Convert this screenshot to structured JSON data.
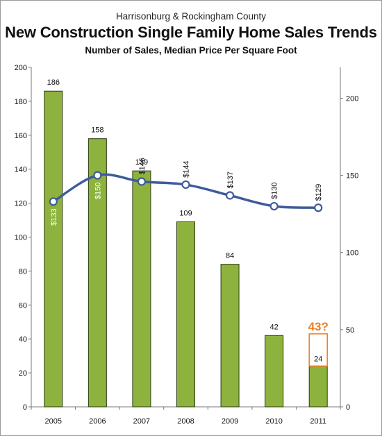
{
  "title_top": "Harrisonburg & Rockingham County",
  "title_main": "New Construction Single Family Home Sales Trends",
  "subtitle": "Number of Sales, Median Price Per Square Foot",
  "colors": {
    "bar": "#8db33e",
    "bar_edge": "#2b3a13",
    "line": "#3e5b9b",
    "point_fill": "#ffffff",
    "annotation": "#f07c1e",
    "axis": "#777777"
  },
  "chart_data": {
    "type": "bar",
    "title": "New Construction Single Family Home Sales Trends",
    "categories": [
      "2005",
      "2006",
      "2007",
      "2008",
      "2009",
      "2010",
      "2011"
    ],
    "series": [
      {
        "type": "bar",
        "axis": "left",
        "values": [
          186,
          158,
          139,
          109,
          84,
          42,
          24
        ],
        "labels": [
          "186",
          "158",
          "139",
          "109",
          "84",
          "42",
          "24"
        ]
      },
      {
        "type": "line",
        "axis": "right",
        "values": [
          133,
          150,
          146,
          144,
          137,
          130,
          129
        ],
        "labels": [
          "$133",
          "$150",
          "$146",
          "$144",
          "$137",
          "$130",
          "$129"
        ]
      }
    ],
    "y_left": {
      "min": 0,
      "max": 200,
      "ticks": [
        "0",
        "20",
        "40",
        "60",
        "80",
        "100",
        "120",
        "140",
        "160",
        "180",
        "200"
      ]
    },
    "y_right": {
      "min": 0,
      "max": 220,
      "ticks": [
        "0",
        "50",
        "100",
        "150",
        "200"
      ]
    },
    "annotation": {
      "category": "2011",
      "text": "43?",
      "value": 43
    },
    "grid": false,
    "legend": "none"
  }
}
